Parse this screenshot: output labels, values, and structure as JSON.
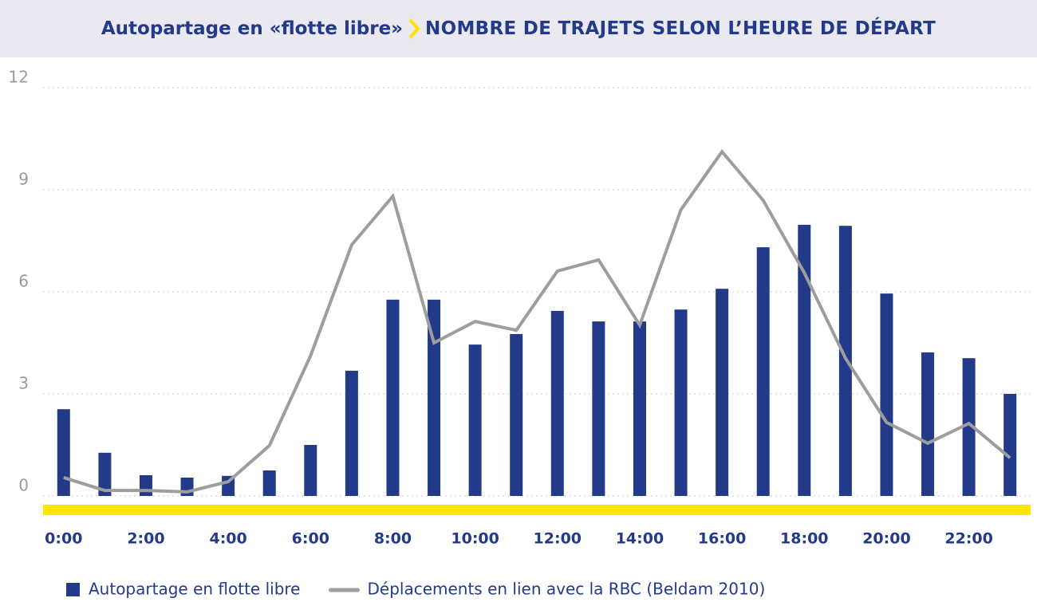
{
  "chart_data": {
    "type": "bar",
    "title": "Autopartage en «flotte libre»",
    "subtitle": "NOMBRE DE TRAJETS SELON L’HEURE DE DÉPART",
    "categories": [
      "0:00",
      null,
      "2:00",
      null,
      "4:00",
      null,
      "6:00",
      null,
      "8:00",
      null,
      "10:00",
      null,
      "12:00",
      null,
      "14:00",
      null,
      "16:00",
      null,
      "18:00",
      null,
      "20:00",
      null,
      "22:00",
      null
    ],
    "series": [
      {
        "name": "Autopartage en flotte libre",
        "type": "bar",
        "color": "#233a8b",
        "values": [
          2.55,
          1.27,
          0.61,
          0.54,
          0.59,
          0.75,
          1.5,
          3.68,
          5.77,
          5.77,
          4.45,
          4.76,
          5.44,
          5.13,
          5.13,
          5.48,
          6.09,
          7.31,
          7.97,
          7.94,
          5.95,
          4.22,
          4.05,
          3.0
        ]
      },
      {
        "name": "Déplacements en lien avec la RBC (Beldam 2010)",
        "type": "line",
        "color": "#9d9d9d",
        "values": [
          0.54,
          0.16,
          0.16,
          0.12,
          0.42,
          1.48,
          4.12,
          7.38,
          8.81,
          4.5,
          5.13,
          4.87,
          6.61,
          6.94,
          5.02,
          8.41,
          10.12,
          8.69,
          6.56,
          4.05,
          2.16,
          1.55,
          2.13,
          1.12
        ]
      }
    ],
    "ylim": [
      0,
      12
    ],
    "yticks": [
      0,
      3,
      6,
      9,
      12
    ],
    "grid": true,
    "legend": "bottom"
  }
}
